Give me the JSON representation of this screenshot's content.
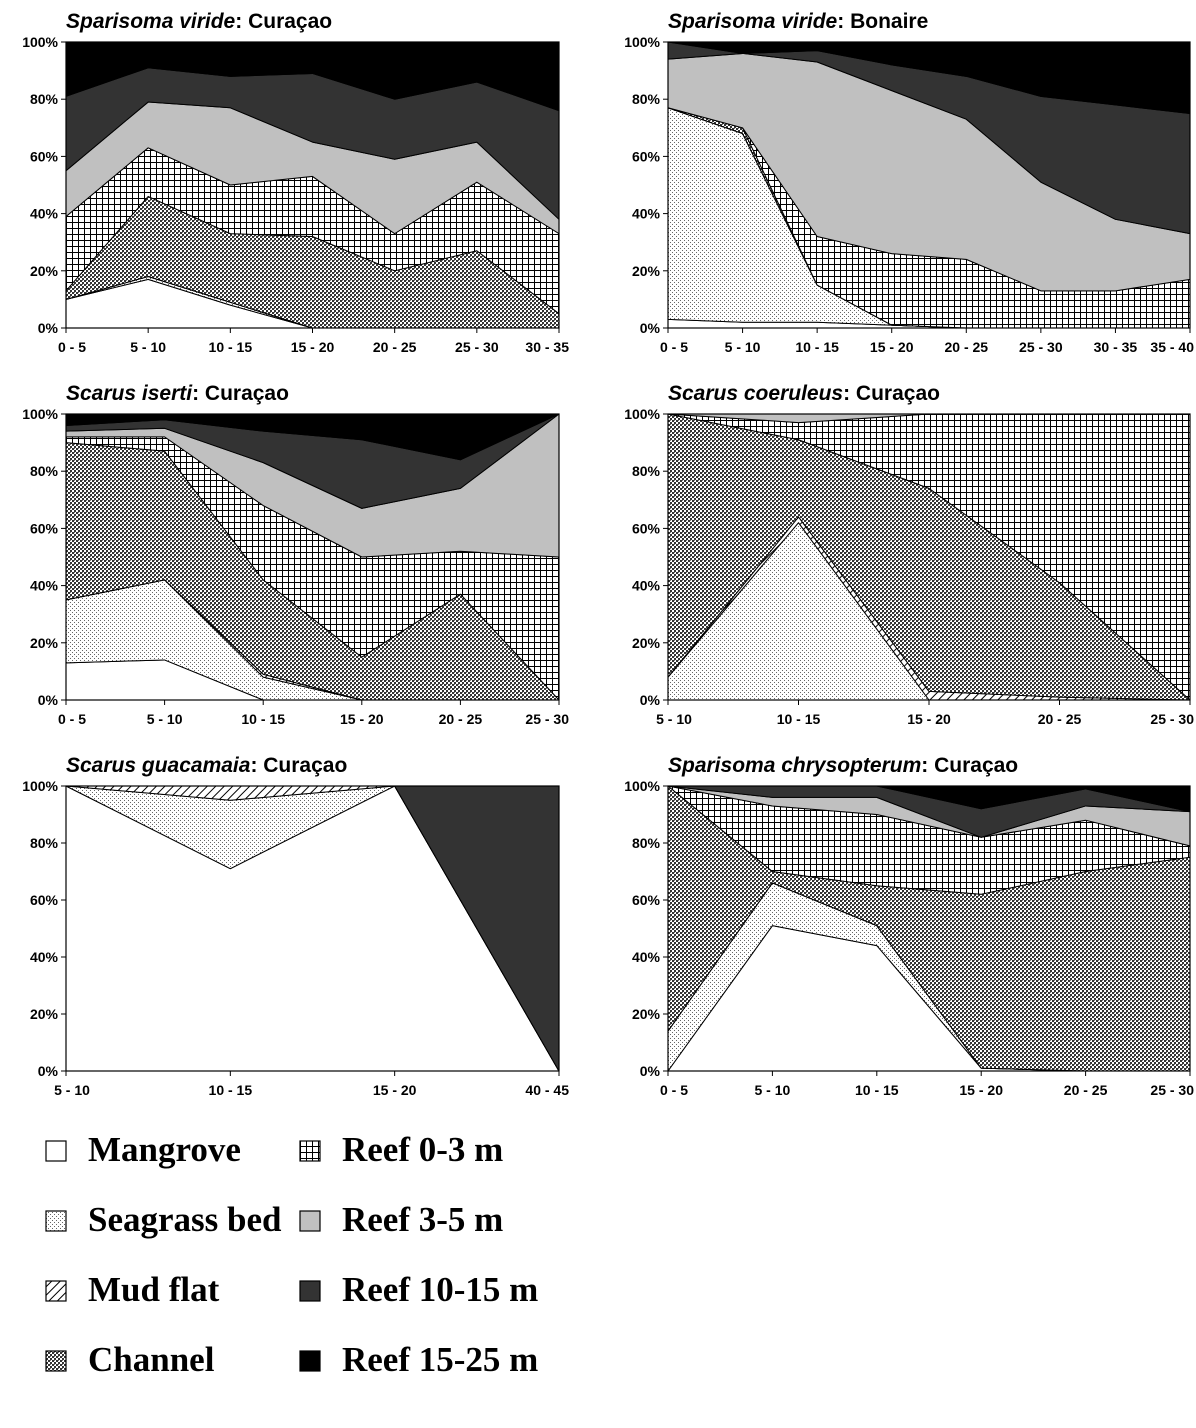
{
  "legend": [
    {
      "key": "mangrove",
      "label": "Mangrove",
      "pattern": "solid-white"
    },
    {
      "key": "seagrass",
      "label": "Seagrass bed",
      "pattern": "fine-dots"
    },
    {
      "key": "mudflat",
      "label": "Mud flat",
      "pattern": "diagonal-hatch"
    },
    {
      "key": "channel",
      "label": "Channel",
      "pattern": "dense-checker"
    },
    {
      "key": "reef03",
      "label": "Reef 0-3 m",
      "pattern": "grid"
    },
    {
      "key": "reef35",
      "label": "Reef 3-5 m",
      "pattern": "solid-light-gray"
    },
    {
      "key": "reef1015",
      "label": "Reef 10-15 m",
      "pattern": "solid-dark-gray"
    },
    {
      "key": "reef1525",
      "label": "Reef 15-25 m",
      "pattern": "solid-black"
    }
  ],
  "colors": {
    "mangrove": "#ffffff",
    "seagrass": "#ffffff",
    "mudflat": "#ffffff",
    "channel": "#ffffff",
    "reef03": "#ffffff",
    "reef35": "#c0c0c0",
    "reef1015": "#333333",
    "reef1525": "#000000"
  },
  "y_ticks": [
    "0%",
    "20%",
    "40%",
    "60%",
    "80%",
    "100%"
  ],
  "chart_data": [
    {
      "type": "area",
      "stacked": true,
      "title_species": "Sparisoma viride",
      "title_location": ": Curaçao",
      "categories": [
        "0 - 5",
        "5 - 10",
        "10 - 15",
        "15 - 20",
        "20 - 25",
        "25 - 30",
        "30 - 35"
      ],
      "ylim": [
        0,
        100
      ],
      "series": [
        {
          "name": "Mangrove",
          "values": [
            10,
            17,
            8,
            0,
            0,
            0,
            0
          ]
        },
        {
          "name": "Seagrass bed",
          "values": [
            0,
            1,
            1,
            0,
            0,
            0,
            0
          ]
        },
        {
          "name": "Mud flat",
          "values": [
            0,
            0,
            0,
            0,
            0,
            0,
            0
          ]
        },
        {
          "name": "Channel",
          "values": [
            3,
            28,
            24,
            32,
            20,
            27,
            5
          ]
        },
        {
          "name": "Reef 0-3 m",
          "values": [
            26,
            17,
            17,
            21,
            13,
            24,
            28
          ]
        },
        {
          "name": "Reef 3-5 m",
          "values": [
            16,
            16,
            27,
            12,
            26,
            14,
            5
          ]
        },
        {
          "name": "Reef 10-15 m",
          "values": [
            26,
            12,
            11,
            24,
            21,
            21,
            38
          ]
        },
        {
          "name": "Reef 15-25 m",
          "values": [
            19,
            9,
            12,
            11,
            20,
            14,
            24
          ]
        }
      ]
    },
    {
      "type": "area",
      "stacked": true,
      "title_species": "Sparisoma viride",
      "title_location": ": Bonaire",
      "categories": [
        "0 - 5",
        "5 - 10",
        "10 - 15",
        "15 - 20",
        "20 - 25",
        "25 - 30",
        "30 - 35",
        "35 - 40"
      ],
      "ylim": [
        0,
        100
      ],
      "series": [
        {
          "name": "Mangrove",
          "values": [
            3,
            2,
            2,
            1,
            0,
            0,
            0,
            0
          ]
        },
        {
          "name": "Seagrass bed",
          "values": [
            74,
            66,
            13,
            0,
            0,
            0,
            0,
            0
          ]
        },
        {
          "name": "Mud flat",
          "values": [
            0,
            0,
            0,
            0,
            0,
            0,
            0,
            0
          ]
        },
        {
          "name": "Channel",
          "values": [
            0,
            2,
            0,
            0,
            0,
            0,
            0,
            0
          ]
        },
        {
          "name": "Reef 0-3 m",
          "values": [
            0,
            0,
            17,
            25,
            24,
            13,
            13,
            17
          ]
        },
        {
          "name": "Reef 3-5 m",
          "values": [
            17,
            26,
            61,
            57,
            49,
            38,
            25,
            16
          ]
        },
        {
          "name": "Reef 10-15 m",
          "values": [
            6,
            0,
            4,
            9,
            15,
            30,
            40,
            42
          ]
        },
        {
          "name": "Reef 15-25 m",
          "values": [
            0,
            4,
            3,
            8,
            12,
            19,
            22,
            25
          ]
        }
      ]
    },
    {
      "type": "area",
      "stacked": true,
      "title_species": "Scarus iserti",
      "title_location": ": Curaçao",
      "categories": [
        "0 - 5",
        "5 - 10",
        "10 - 15",
        "15 - 20",
        "20 - 25",
        "25 - 30"
      ],
      "ylim": [
        0,
        100
      ],
      "series": [
        {
          "name": "Mangrove",
          "values": [
            13,
            14,
            0,
            0,
            0,
            0
          ]
        },
        {
          "name": "Seagrass bed",
          "values": [
            22,
            28,
            8,
            0,
            0,
            0
          ]
        },
        {
          "name": "Mud flat",
          "values": [
            0,
            0,
            1,
            0,
            0,
            0
          ]
        },
        {
          "name": "Channel",
          "values": [
            55,
            45,
            33,
            15,
            37,
            0
          ]
        },
        {
          "name": "Reef 0-3 m",
          "values": [
            2,
            5,
            26,
            35,
            15,
            50
          ]
        },
        {
          "name": "Reef 3-5 m",
          "values": [
            2,
            3,
            15,
            17,
            22,
            50
          ]
        },
        {
          "name": "Reef 10-15 m",
          "values": [
            2,
            3,
            11,
            24,
            10,
            0
          ]
        },
        {
          "name": "Reef 15-25 m",
          "values": [
            4,
            2,
            6,
            9,
            16,
            0
          ]
        }
      ]
    },
    {
      "type": "area",
      "stacked": true,
      "title_species": "Scarus coeruleus",
      "title_location": ": Curaçao",
      "categories": [
        "5 - 10",
        "10 - 15",
        "15 - 20",
        "20 - 25",
        "25 - 30"
      ],
      "ylim": [
        0,
        100
      ],
      "series": [
        {
          "name": "Mangrove",
          "values": [
            0,
            0,
            0,
            0,
            0
          ]
        },
        {
          "name": "Seagrass bed",
          "values": [
            8,
            62,
            0,
            0,
            0
          ]
        },
        {
          "name": "Mud flat",
          "values": [
            0,
            2,
            3,
            1,
            0
          ]
        },
        {
          "name": "Channel",
          "values": [
            92,
            27,
            71,
            40,
            0
          ]
        },
        {
          "name": "Reef 0-3 m",
          "values": [
            0,
            6,
            26,
            59,
            100
          ]
        },
        {
          "name": "Reef 3-5 m",
          "values": [
            0,
            3,
            0,
            0,
            0
          ]
        },
        {
          "name": "Reef 10-15 m",
          "values": [
            0,
            0,
            0,
            0,
            0
          ]
        },
        {
          "name": "Reef 15-25 m",
          "values": [
            0,
            0,
            0,
            0,
            0
          ]
        }
      ]
    },
    {
      "type": "area",
      "stacked": true,
      "title_species": "Scarus guacamaia",
      "title_location": ": Curaçao",
      "categories": [
        "5 - 10",
        "10 - 15",
        "15 - 20",
        "40 - 45"
      ],
      "ylim": [
        0,
        100
      ],
      "series": [
        {
          "name": "Mangrove",
          "values": [
            100,
            71,
            100,
            0
          ]
        },
        {
          "name": "Seagrass bed",
          "values": [
            0,
            24,
            0,
            0
          ]
        },
        {
          "name": "Mud flat",
          "values": [
            0,
            5,
            0,
            0
          ]
        },
        {
          "name": "Channel",
          "values": [
            0,
            0,
            0,
            0
          ]
        },
        {
          "name": "Reef 0-3 m",
          "values": [
            0,
            0,
            0,
            0
          ]
        },
        {
          "name": "Reef 3-5 m",
          "values": [
            0,
            0,
            0,
            0
          ]
        },
        {
          "name": "Reef 10-15 m",
          "values": [
            0,
            0,
            0,
            100
          ]
        },
        {
          "name": "Reef 15-25 m",
          "values": [
            0,
            0,
            0,
            0
          ]
        }
      ]
    },
    {
      "type": "area",
      "stacked": true,
      "title_species": "Sparisoma chrysopterum",
      "title_location": ": Curaçao",
      "categories": [
        "0 - 5",
        "5 - 10",
        "10 - 15",
        "15 - 20",
        "20 - 25",
        "25 - 30"
      ],
      "ylim": [
        0,
        100
      ],
      "series": [
        {
          "name": "Mangrove",
          "values": [
            0,
            51,
            44,
            1,
            0,
            0
          ]
        },
        {
          "name": "Seagrass bed",
          "values": [
            14,
            15,
            7,
            0,
            0,
            0
          ]
        },
        {
          "name": "Mud flat",
          "values": [
            0,
            0,
            0,
            0,
            0,
            0
          ]
        },
        {
          "name": "Channel",
          "values": [
            86,
            4,
            14,
            61,
            70,
            75
          ]
        },
        {
          "name": "Reef 0-3 m",
          "values": [
            0,
            23,
            25,
            20,
            18,
            4
          ]
        },
        {
          "name": "Reef 3-5 m",
          "values": [
            0,
            3,
            6,
            0,
            5,
            12
          ]
        },
        {
          "name": "Reef 10-15 m",
          "values": [
            0,
            4,
            4,
            10,
            6,
            0
          ]
        },
        {
          "name": "Reef 15-25 m",
          "values": [
            0,
            0,
            0,
            8,
            1,
            9
          ]
        }
      ]
    }
  ]
}
